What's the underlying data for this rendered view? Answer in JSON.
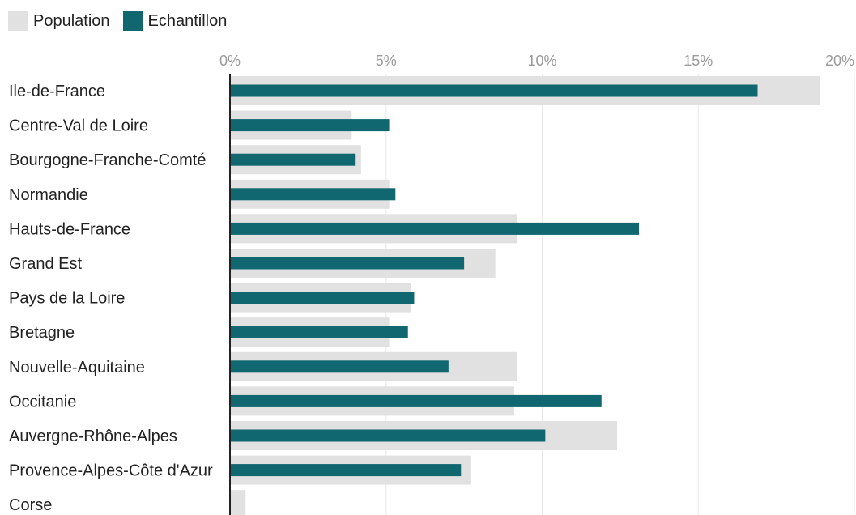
{
  "chart_data": {
    "type": "bar",
    "orientation": "horizontal",
    "categories": [
      "Ile-de-France",
      "Centre-Val de Loire",
      "Bourgogne-Franche-Comté",
      "Normandie",
      "Hauts-de-France",
      "Grand Est",
      "Pays de la Loire",
      "Bretagne",
      "Nouvelle-Aquitaine",
      "Occitanie",
      "Auvergne-Rhône-Alpes",
      "Provence-Alpes-Côte d'Azur",
      "Corse"
    ],
    "series": [
      {
        "name": "Population",
        "color": "#e1e1e1",
        "values": [
          18.9,
          3.9,
          4.2,
          5.1,
          9.2,
          8.5,
          5.8,
          5.1,
          9.2,
          9.1,
          12.4,
          7.7,
          0.5
        ]
      },
      {
        "name": "Echantillon",
        "color": "#106770",
        "values": [
          16.9,
          5.1,
          4.0,
          5.3,
          13.1,
          7.5,
          5.9,
          5.7,
          7.0,
          11.9,
          10.1,
          7.4,
          0
        ]
      }
    ],
    "x_ticks": [
      "0%",
      "5%",
      "10%",
      "15%",
      "20%"
    ],
    "xlim": [
      0,
      20
    ],
    "grid": true,
    "legend_position": "top-left"
  }
}
